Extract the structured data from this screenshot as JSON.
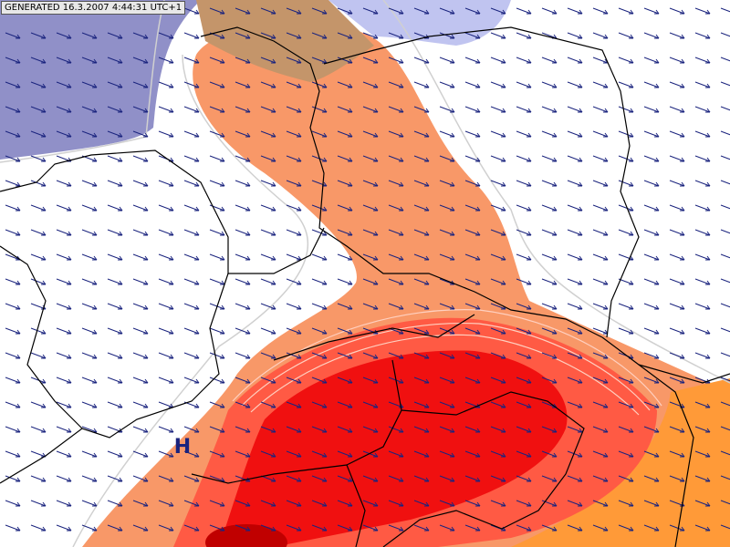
{
  "header": {
    "generated": "GENERATED 16.3.2007 4:44:31 UTC+1"
  },
  "map": {
    "pressure_label": "H"
  }
}
